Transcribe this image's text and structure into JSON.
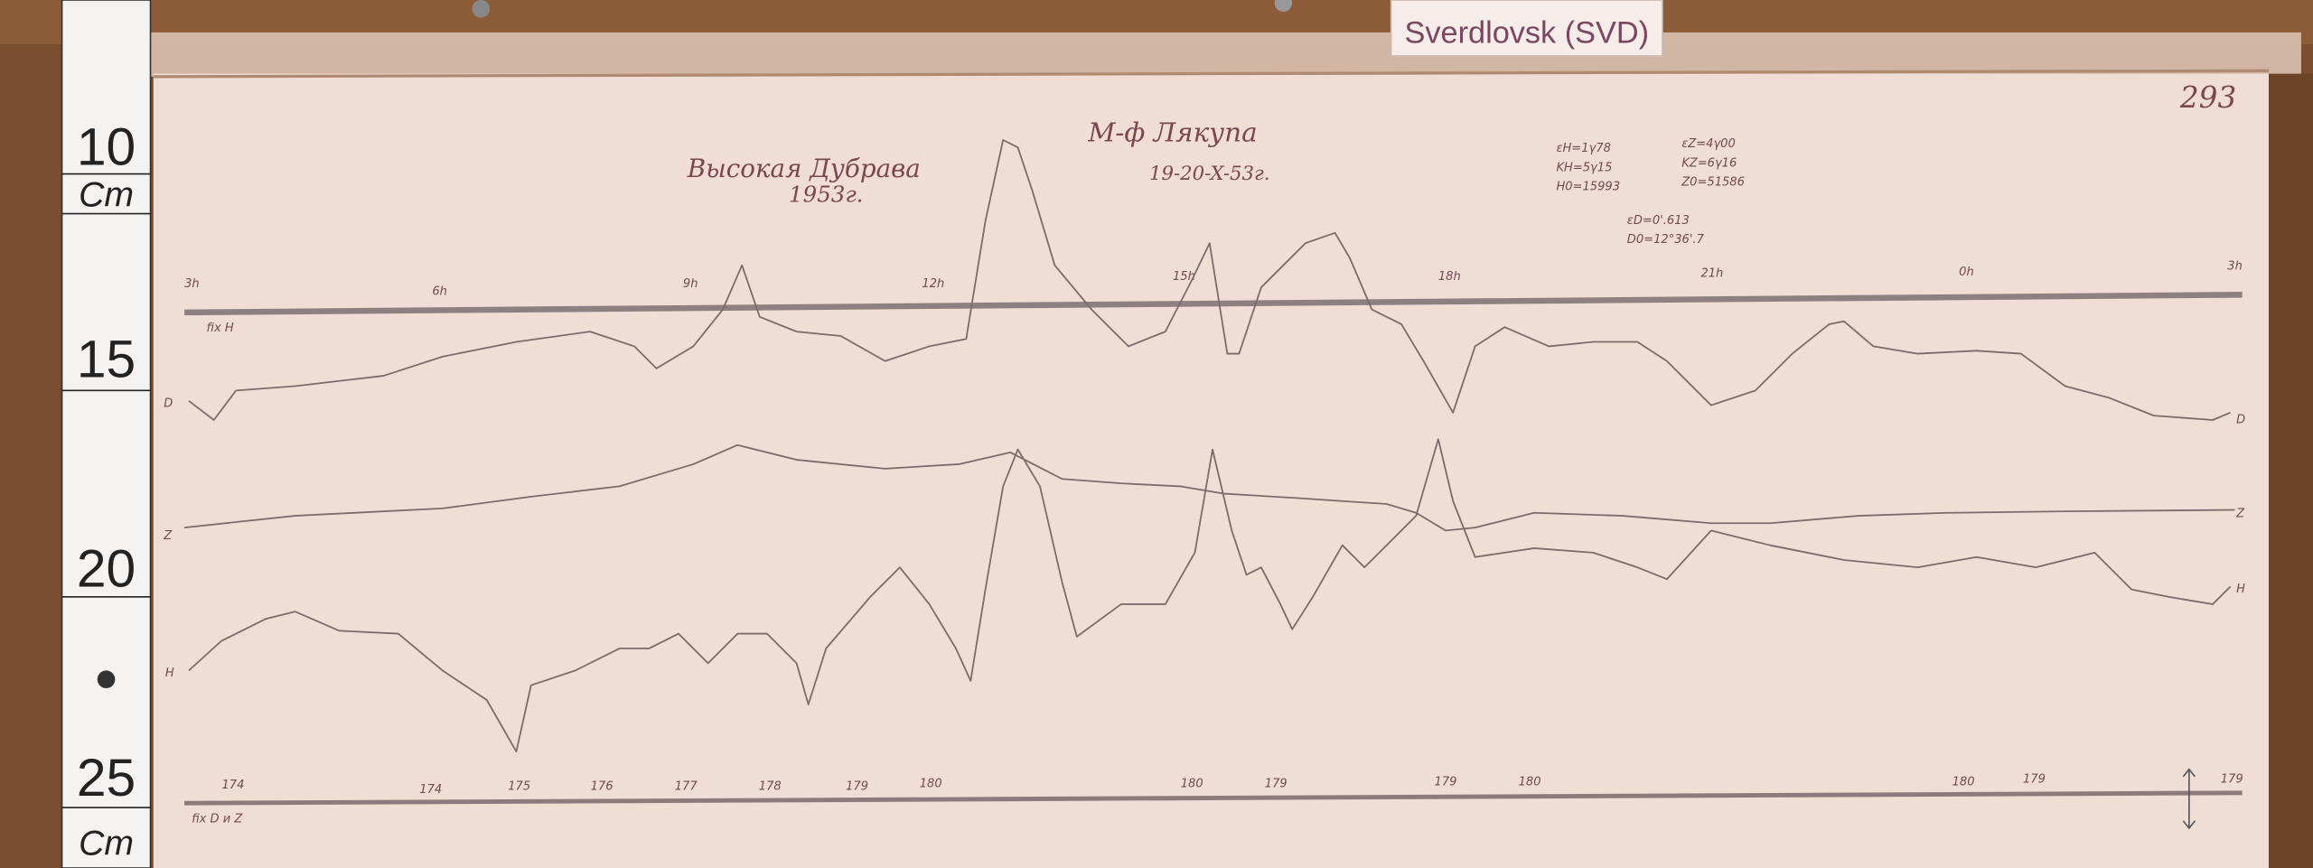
{
  "label_card": "Sverdlovsk (SVD)",
  "sheet_number": "293",
  "ruler": {
    "marks": [
      "10",
      "Cm",
      "15",
      "20",
      "25",
      "Cm"
    ]
  },
  "header": {
    "station": "Высокая Дубрава",
    "year": "1953г.",
    "observer": "М-ф Лякупа",
    "date": "19-20-X-53г.",
    "params_h": [
      "εH=1γ78",
      "KH=5γ15",
      "H0=15993"
    ],
    "params_z": [
      "εZ=4γ00",
      "KZ=6γ16",
      "Z0=51586"
    ],
    "params_d": [
      "εD=0'.613",
      "D0=12°36'.7"
    ]
  },
  "hour_marks": [
    "3h",
    "6h",
    "9h",
    "12h",
    "15h",
    "18h",
    "21h",
    "0h",
    "3h"
  ],
  "baseline_top_label": "fix H",
  "trace_labels": {
    "d": "D",
    "z": "Z",
    "h": "H"
  },
  "temperature_marks": [
    "174",
    "174",
    "175",
    "176",
    "177",
    "178",
    "179",
    "180",
    "180",
    "179",
    "179",
    "180",
    "180",
    "179",
    "179"
  ],
  "baseline_bottom_label": "fix D и Z",
  "colors": {
    "paper": "#f0ddd5",
    "wood": "#7a4e2e",
    "ink": "#7a4650",
    "trace": "#7d6a6a"
  }
}
